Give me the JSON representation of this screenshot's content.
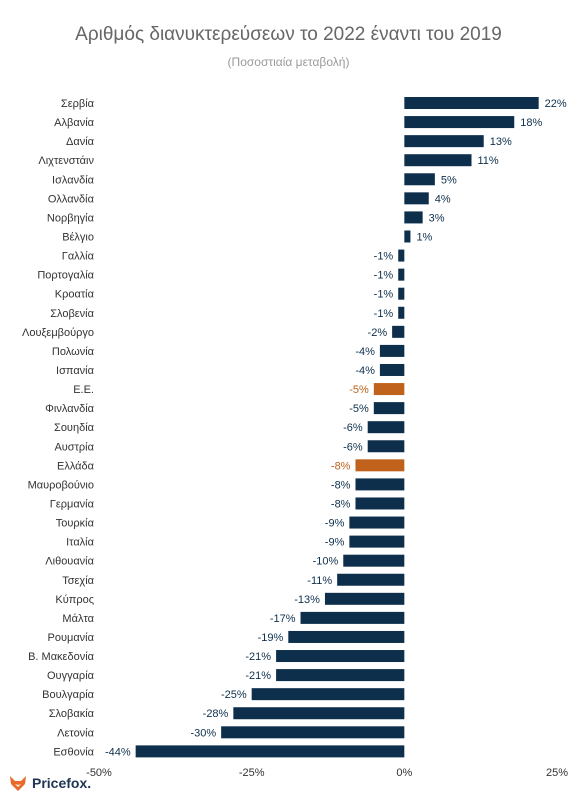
{
  "chart_data": {
    "type": "bar",
    "orientation": "horizontal",
    "title": "Αριθμός διανυκτερεύσεων το 2022 έναντι του 2019",
    "subtitle": "(Ποσοστιαία μεταβολή)",
    "xlim": [
      -50,
      25
    ],
    "xticks": [
      -50,
      -25,
      0,
      25
    ],
    "xtick_labels": [
      "-50%",
      "-25%",
      "0%",
      "25%"
    ],
    "grid": false,
    "unit": "%",
    "colors": {
      "default": "#0e2f4c",
      "highlight": "#c0621c"
    },
    "categories": [
      "Σερβία",
      "Αλβανία",
      "Δανία",
      "Λιχτενστάιν",
      "Ισλανδία",
      "Ολλανδία",
      "Νορβηγία",
      "Βέλγιο",
      "Γαλλία",
      "Πορτογαλία",
      "Κροατία",
      "Σλοβενία",
      "Λουξεμβούργο",
      "Πολωνία",
      "Ισπανία",
      "Ε.Ε.",
      "Φινλανδία",
      "Σουηδία",
      "Αυστρία",
      "Ελλάδα",
      "Μαυροβούνιο",
      "Γερμανία",
      "Τουρκία",
      "Ιταλία",
      "Λιθουανία",
      "Τσεχία",
      "Κύπρος",
      "Μάλτα",
      "Ρουμανία",
      "Β. Μακεδονία",
      "Ουγγαρία",
      "Βουλγαρία",
      "Σλοβακία",
      "Λετονία",
      "Εσθονία"
    ],
    "values": [
      22,
      18,
      13,
      11,
      5,
      4,
      3,
      1,
      -1,
      -1,
      -1,
      -1,
      -2,
      -4,
      -4,
      -5,
      -5,
      -6,
      -6,
      -8,
      -8,
      -8,
      -9,
      -9,
      -10,
      -11,
      -13,
      -17,
      -19,
      -21,
      -21,
      -25,
      -28,
      -30,
      -44
    ],
    "highlighted": [
      "Ε.Ε.",
      "Ελλάδα"
    ]
  },
  "logo": {
    "text": "Pricefox.",
    "icon": "fox-icon"
  }
}
